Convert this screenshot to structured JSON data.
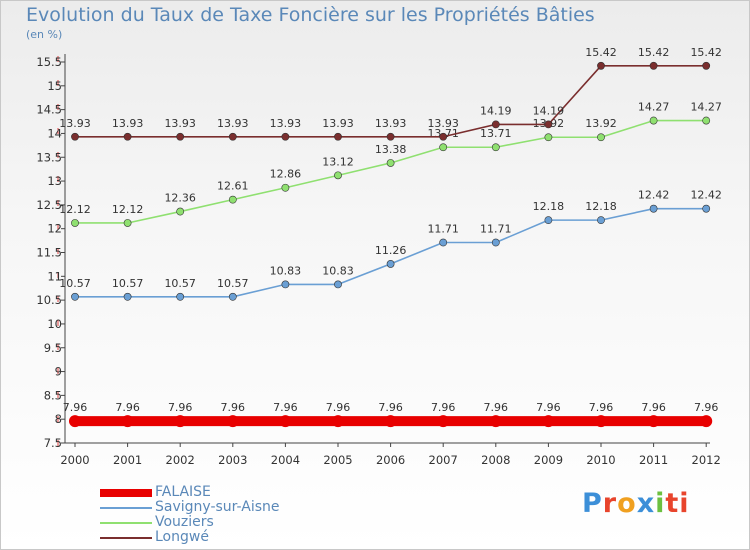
{
  "title": "Evolution du Taux de Taxe Foncière sur les Propriétés Bâties",
  "unit_label": "(en %)",
  "logo": {
    "text": "Proxiti",
    "letters": [
      "P",
      "r",
      "o",
      "x",
      "i",
      "ti"
    ]
  },
  "chart_data": {
    "type": "line",
    "title": "Evolution du Taux de Taxe Foncière sur les Propriétés Bâties",
    "ylabel": "(en %)",
    "xlabel": "",
    "x": [
      "2000",
      "2001",
      "2002",
      "2003",
      "2004",
      "2005",
      "2006",
      "2007",
      "2008",
      "2009",
      "2010",
      "2011",
      "2012"
    ],
    "ylim": [
      7.5,
      15.5
    ],
    "yticks": [
      "7.5",
      "8",
      "8.5",
      "9",
      "9.5",
      "10",
      "10.5",
      "11",
      "11.5",
      "12",
      "12.5",
      "13",
      "13.5",
      "14",
      "14.5",
      "15",
      "15.5"
    ],
    "grid": false,
    "legend_position": "bottom-left",
    "series": [
      {
        "name": "FALAISE",
        "color": "#e80000",
        "values": [
          7.96,
          7.96,
          7.96,
          7.96,
          7.96,
          7.96,
          7.96,
          7.96,
          7.96,
          7.96,
          7.96,
          7.96,
          7.96
        ],
        "labels": [
          "7.96",
          "7.96",
          "7.96",
          "7.96",
          "7.96",
          "7.96",
          "7.96",
          "7.96",
          "7.96",
          "7.96",
          "7.96",
          "7.96",
          "7.96"
        ]
      },
      {
        "name": "Savigny-sur-Aisne",
        "color": "#6a9fd4",
        "values": [
          10.57,
          10.57,
          10.57,
          10.57,
          10.83,
          10.83,
          11.26,
          11.71,
          11.71,
          12.18,
          12.18,
          12.42,
          12.42
        ],
        "labels": [
          "10.57",
          "10.57",
          "10.57",
          "10.57",
          "10.83",
          "10.83",
          "11.26",
          "11.71",
          "11.71",
          "12.18",
          "12.18",
          "12.42",
          "12.42"
        ]
      },
      {
        "name": "Vouziers",
        "color": "#8fe070",
        "values": [
          12.12,
          12.12,
          12.36,
          12.61,
          12.86,
          13.12,
          13.38,
          13.71,
          13.71,
          13.92,
          13.92,
          14.27,
          14.27
        ],
        "labels": [
          "12.12",
          "12.12",
          "12.36",
          "12.61",
          "12.86",
          "13.12",
          "13.38",
          "13.71",
          "13.71",
          "13.92",
          "13.92",
          "14.27",
          "14.27"
        ]
      },
      {
        "name": "Longwé",
        "color": "#7a2e2e",
        "values": [
          13.93,
          13.93,
          13.93,
          13.93,
          13.93,
          13.93,
          13.93,
          13.93,
          14.19,
          14.19,
          15.42,
          15.42,
          15.42
        ],
        "labels": [
          "13.93",
          "13.93",
          "13.93",
          "13.93",
          "13.93",
          "13.93",
          "13.93",
          "13.93",
          "14.19",
          "14.19",
          "15.42",
          "15.42",
          "15.42"
        ]
      }
    ]
  }
}
